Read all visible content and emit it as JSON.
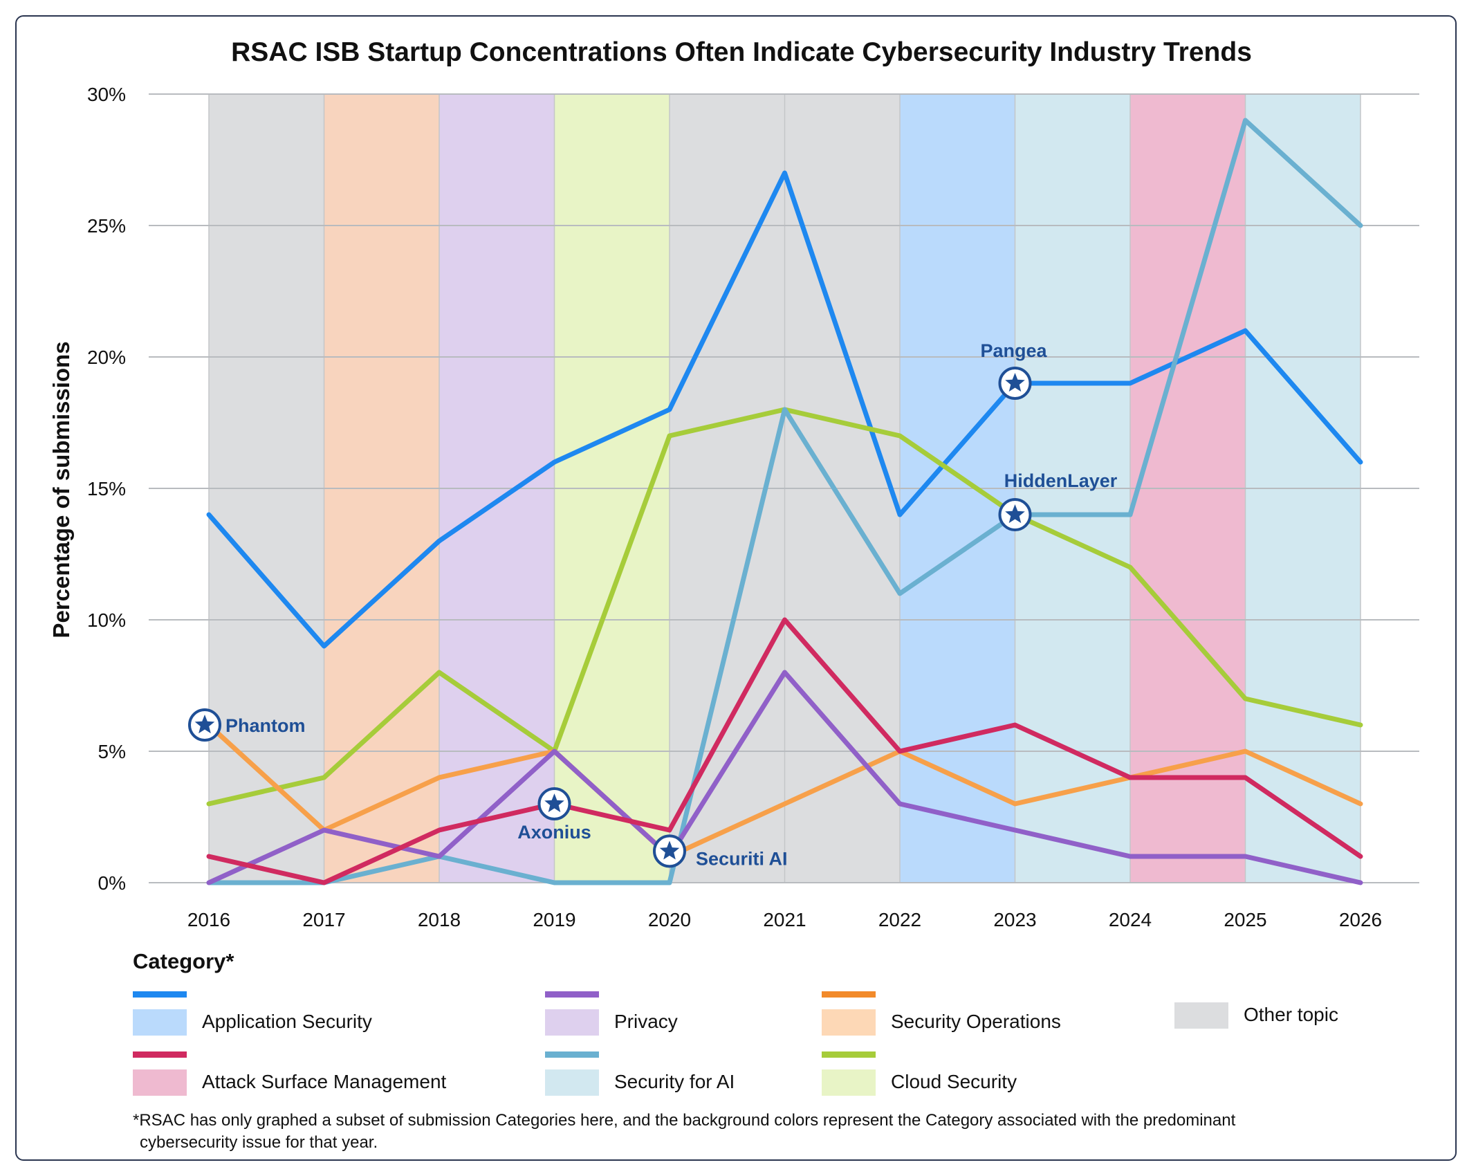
{
  "chart_data": {
    "type": "line",
    "title": "RSAC ISB Startup Concentrations Often Indicate Cybersecurity Industry Trends",
    "ylabel": "Percentage of submissions",
    "xlabel": "",
    "x": [
      "2016",
      "2017",
      "2018",
      "2019",
      "2020",
      "2021",
      "2022",
      "2023",
      "2024",
      "2025",
      "2026"
    ],
    "ylim": [
      0,
      30
    ],
    "yticks": [
      0,
      5,
      10,
      15,
      20,
      25,
      30
    ],
    "ytick_labels": [
      "0%",
      "5%",
      "10%",
      "15%",
      "20%",
      "25%",
      "30%"
    ],
    "grid": "horizontal",
    "series": [
      {
        "name": "Application Security",
        "color": "#1e88f0",
        "values": [
          14,
          9,
          13,
          16,
          18,
          27,
          14,
          19,
          19,
          21,
          16
        ]
      },
      {
        "name": "Cloud Security",
        "color": "#a6cc3a",
        "values": [
          3,
          4,
          8,
          5,
          17,
          18,
          17,
          14,
          12,
          7,
          6
        ]
      },
      {
        "name": "Security for AI",
        "color": "#6ab0d0",
        "values": [
          0,
          0,
          1,
          0,
          0,
          18,
          11,
          14,
          14,
          29,
          25
        ]
      },
      {
        "name": "Security Operations",
        "color": "#f7a04a",
        "values": [
          6,
          2,
          4,
          5,
          1,
          3,
          5,
          3,
          4,
          5,
          3
        ]
      },
      {
        "name": "Privacy",
        "color": "#9060c8",
        "values": [
          0,
          2,
          1,
          5,
          1,
          8,
          3,
          2,
          1,
          1,
          0
        ]
      },
      {
        "name": "Attack Surface Management",
        "color": "#d02a60",
        "values": [
          1,
          0,
          2,
          3,
          2,
          10,
          5,
          6,
          4,
          4,
          1
        ]
      }
    ],
    "background_bands": [
      {
        "year": "2016",
        "category": "Other topic"
      },
      {
        "year": "2017",
        "category": "Security Operations"
      },
      {
        "year": "2018",
        "category": "Privacy"
      },
      {
        "year": "2019",
        "category": "Cloud Security"
      },
      {
        "year": "2020",
        "category": "Other topic"
      },
      {
        "year": "2021",
        "category": "Other topic"
      },
      {
        "year": "2022",
        "category": "Application Security"
      },
      {
        "year": "2023",
        "category": "Security for AI"
      },
      {
        "year": "2024",
        "category": "Attack Surface Management"
      },
      {
        "year": "2025",
        "category": "Security for AI"
      }
    ],
    "band_colors": {
      "Application Security": "#badafc",
      "Privacy": "#ded0ee",
      "Security Operations": "#f8d4be",
      "Other topic": "#dcdddf",
      "Attack Surface Management": "#efbad0",
      "Security for AI": "#d2e8f0",
      "Cloud Security": "#e8f4c6"
    },
    "annotations": [
      {
        "label": "Phantom",
        "x": "2016",
        "y": 6,
        "series": "Security Operations"
      },
      {
        "label": "Axonius",
        "x": "2019",
        "y": 3,
        "series": "Attack Surface Management"
      },
      {
        "label": "Securiti AI",
        "x": "2020",
        "y": 1.2,
        "series": "Privacy"
      },
      {
        "label": "Pangea",
        "x": "2023",
        "y": 19,
        "series": "Application Security"
      },
      {
        "label": "HiddenLayer",
        "x": "2023",
        "y": 14,
        "series": "Security for AI"
      }
    ]
  },
  "legend": {
    "title": "Category*",
    "items": [
      {
        "label": "Application Security",
        "line": "#1e88f0",
        "fill": "#badafc"
      },
      {
        "label": "Privacy",
        "line": "#9060c8",
        "fill": "#ded0ee"
      },
      {
        "label": "Security Operations",
        "line": "#f28a2a",
        "fill": "#fdd8b6"
      },
      {
        "label": "Other topic",
        "line": "",
        "fill": "#dcdddf"
      },
      {
        "label": "Attack Surface Management",
        "line": "#d02a60",
        "fill": "#efbad0"
      },
      {
        "label": "Security for AI",
        "line": "#6ab0d0",
        "fill": "#d2e8f0"
      },
      {
        "label": "Cloud Security",
        "line": "#a6cc3a",
        "fill": "#e8f4c6"
      }
    ]
  },
  "footnote": {
    "line1": "*RSAC has only graphed a subset of submission Categories here, and the background colors represent the Category associated with the predominant",
    "line2": "cybersecurity issue for that year."
  }
}
